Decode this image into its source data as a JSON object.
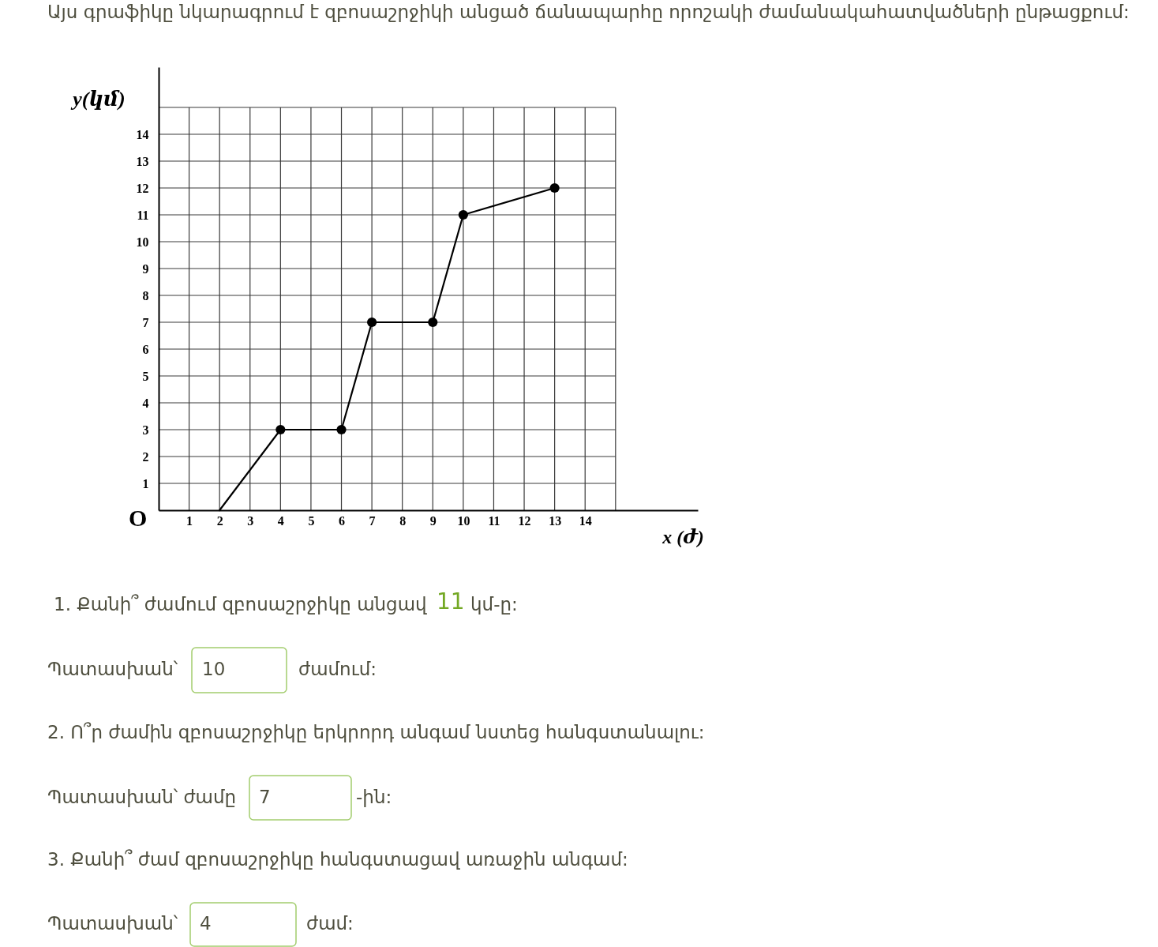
{
  "chart_data": {
    "type": "line",
    "title": "Այս գրաֆիկը նկարագրում է զբոսաշրջիկի անցած ճանապարհը որոշակի ժամանակահատվածների ընթացքում:",
    "xlabel": "x (ժ)",
    "ylabel": "y(կմ)",
    "xlim": [
      0,
      17.7
    ],
    "ylim": [
      0,
      16.5
    ],
    "xticks": [
      1,
      2,
      3,
      4,
      5,
      6,
      7,
      8,
      9,
      10,
      11,
      12,
      13,
      14,
      {
        "value": 15,
        "label": null
      }
    ],
    "yticks": [
      1,
      2,
      3,
      4,
      5,
      6,
      7,
      8,
      9,
      10,
      11,
      12,
      13,
      14,
      {
        "value": 15,
        "label": null
      }
    ],
    "grid": true,
    "series": [
      {
        "color": "#000000",
        "x": [
          2,
          4,
          6,
          7,
          9,
          10,
          13
        ],
        "values": [
          0,
          3,
          3,
          7,
          7,
          11,
          12
        ],
        "marker": "none",
        "line_style": "solid"
      },
      {
        "type": "scatter",
        "color": "#000000",
        "x": [
          4,
          6,
          7,
          9,
          10,
          13
        ],
        "values": [
          3,
          3,
          7,
          7,
          11,
          12
        ],
        "marker": "circle"
      }
    ],
    "annotations": [
      "O",
      "1. Քանի՞ ժամում զբոսաշրջիկը անցավ",
      "11",
      "կմ-ը:",
      "Պատասխան՝",
      "10",
      "ժամում:",
      "2. Ո՞ր ժամին զբոսաշրջիկը երկրորդ անգամ նստեց հանգստանալու:",
      "Պատասխան՝ ժամը",
      "7",
      "-ին:",
      "3. Քանի՞ ժամ զբոսաշրջիկը հանգստացավ առաջին անգամ:",
      "Պատասխան՝",
      "4",
      "ժամ:"
    ]
  }
}
